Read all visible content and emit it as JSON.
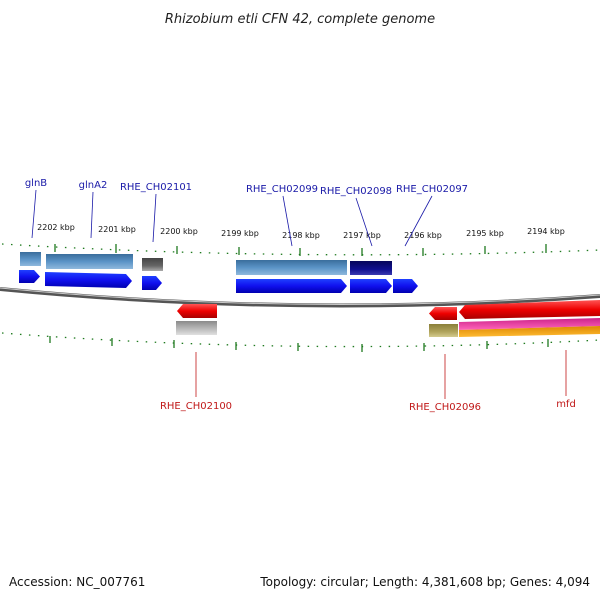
{
  "title": "Rhizobium etli CFN 42, complete genome",
  "footer": {
    "accession": "Accession: NC_007761",
    "topology": "Topology: circular; Length: 4,381,608 bp; Genes: 4,094"
  },
  "colors": {
    "forward_label": "#1a1aa8",
    "reverse_label": "#c01818",
    "tick": "#1f7a1f",
    "backbone": "#777777"
  },
  "ruler": {
    "labels": [
      "2202 kbp",
      "2201 kbp",
      "2200 kbp",
      "2199 kbp",
      "2198 kbp",
      "2197 kbp",
      "2196 kbp",
      "2195 kbp",
      "2194 kbp"
    ]
  },
  "forward_labels": [
    "glnB",
    "glnA2",
    "RHE_CH02101",
    "RHE_CH02099",
    "RHE_CH02098",
    "RHE_CH02097"
  ],
  "reverse_labels": [
    "RHE_CH02100",
    "RHE_CH02096",
    "mfd"
  ]
}
